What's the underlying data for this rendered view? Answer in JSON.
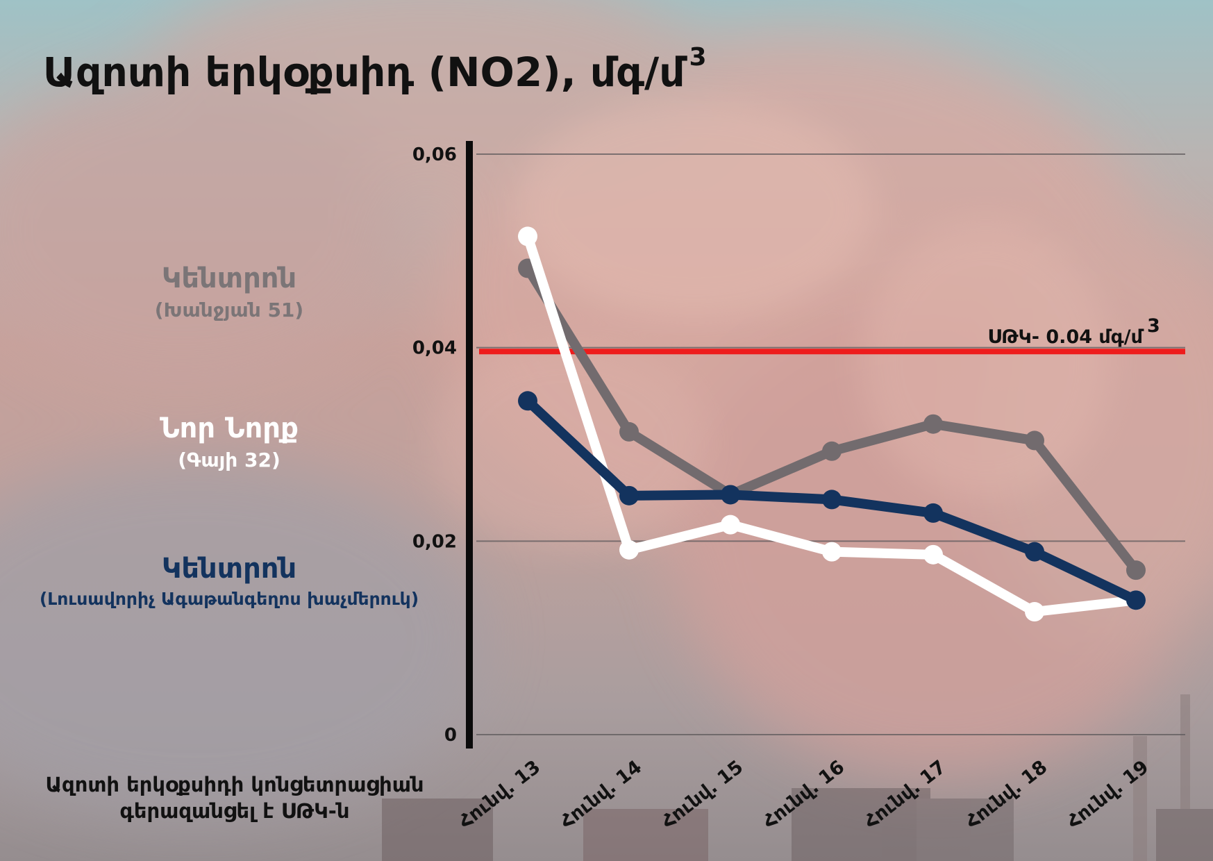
{
  "title": "Ազոտի երկօքսիդ (NO2), մգ/մ",
  "title_superscript": "3",
  "legend": [
    {
      "name": "Կենտրոն",
      "address": "(Խանջյան 51)",
      "color": "#726b6e"
    },
    {
      "name": "Նոր Նորք",
      "address": "(Գայի 32)",
      "color": "#ffffff"
    },
    {
      "name": "Կենտրոն",
      "address": "(Լուսավորիչ Ագաթանգեղոս խաչմերուկ)",
      "color": "#13335e"
    }
  ],
  "bottom_note": {
    "line1": "Ազոտի երկօքսիդի կոնցետրացիան",
    "line2": "գերազանցել է ՍԹԿ-ն"
  },
  "chart_data": {
    "type": "line",
    "title": "Ազոտի երկօքսիդ (NO2), մգ/մ3",
    "categories": [
      "Հունվ. 13",
      "Հունվ. 14",
      "Հունվ. 15",
      "Հունվ. 16",
      "Հունվ. 17",
      "Հունվ. 18",
      "Հունվ. 19"
    ],
    "y_ticks": [
      "0",
      "0,02",
      "0,04",
      "0,06"
    ],
    "ylim": [
      0,
      0.06
    ],
    "grid": true,
    "reference_line": {
      "value": 0.0396,
      "label": "ՍԹԿ- 0.04 մգ/մ",
      "label_superscript": "3",
      "color": "#ee1c1c"
    },
    "series": [
      {
        "name": "Կենտրոն (Խանջյան 51)",
        "color": "#726b6e",
        "values": [
          0.0482,
          0.0313,
          0.0248,
          0.0293,
          0.0321,
          0.0304,
          0.017
        ]
      },
      {
        "name": "Նոր Նորք (Գայի 32)",
        "color": "#ffffff",
        "values": [
          0.0515,
          0.0191,
          0.0217,
          0.0189,
          0.0186,
          0.0127,
          0.0139
        ]
      },
      {
        "name": "Կենտրոն (Լուսավորիչ Ագաթանգեղոս խաչմերուկ)",
        "color": "#13335e",
        "values": [
          0.0345,
          0.0247,
          0.0248,
          0.0243,
          0.0229,
          0.0189,
          0.0139
        ]
      }
    ]
  }
}
